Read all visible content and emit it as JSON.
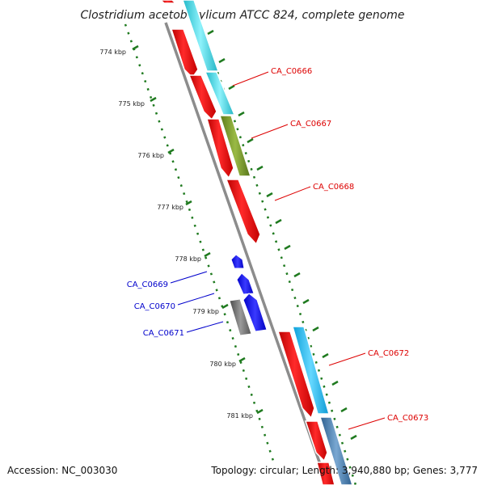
{
  "title": "Clostridium acetobutylicum ATCC 824, complete genome",
  "footer": {
    "accession": "Accession: NC_003030",
    "summary": "Topology: circular; Length: 3,940,880 bp; Genes: 3,777"
  },
  "colors": {
    "backbone": "#8c8c8c",
    "tick": "#1f7a1f",
    "forward_label": "#dd0000",
    "reverse_label": "#0000cc"
  },
  "ticks": [
    "774 kbp",
    "775 kbp",
    "776 kbp",
    "777 kbp",
    "778 kbp",
    "779 kbp",
    "780 kbp",
    "781 kbp"
  ],
  "forward_labels": [
    "CA_C0666",
    "CA_C0667",
    "CA_C0668",
    "CA_C0672",
    "CA_C0673"
  ],
  "reverse_labels": [
    "CA_C0669",
    "CA_C0670",
    "CA_C0671"
  ]
}
